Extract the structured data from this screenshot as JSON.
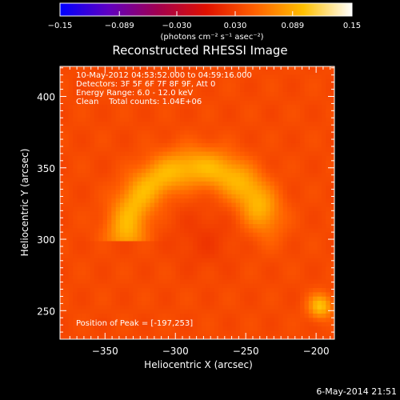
{
  "chart_data": {
    "type": "heatmap",
    "title": "Reconstructed RHESSI Image",
    "xlabel": "Heliocentric X (arcsec)",
    "ylabel": "Heliocentric Y (arcsec)",
    "xlim": [
      -382,
      -187
    ],
    "ylim": [
      230,
      421
    ],
    "xticks": [
      -350,
      -300,
      -250,
      -200
    ],
    "xtick_labels": [
      "−350",
      "−300",
      "−250",
      "−200"
    ],
    "yticks": [
      250,
      300,
      350,
      400
    ],
    "ytick_labels": [
      "250",
      "300",
      "350",
      "400"
    ],
    "colorbar": {
      "range": [
        -0.15,
        0.15
      ],
      "ticks": [
        -0.15,
        -0.089,
        -0.03,
        0.03,
        0.089,
        0.15
      ],
      "tick_labels": [
        "−0.15",
        "−0.089",
        "−0.030",
        "0.030",
        "0.089",
        "0.15"
      ],
      "unit_label": "(photons cm⁻² s⁻¹ asec⁻²)",
      "colors": [
        "#0000ff",
        "#6000c0",
        "#a00050",
        "#e01000",
        "#ff6000",
        "#ffc000",
        "#ffffff"
      ]
    },
    "annotations": [
      "10-May-2012 04:53:52.000 to 04:59:16.000",
      "Detectors: 3F 5F 6F 7F 8F 9F, Att 0",
      "Energy Range: 6.0 - 12.0 keV",
      "Clean    Total counts: 1.04E+06"
    ],
    "peak_label": "Position of Peak = [-197,253]",
    "peak": [
      -197,
      253
    ],
    "sources": [
      {
        "kind": "loop",
        "center": [
          -285,
          300
        ],
        "radius": 50,
        "arc_from_deg": 30,
        "arc_to_deg": 170,
        "width": 10,
        "amplitude": 0.06
      },
      {
        "kind": "blob",
        "center": [
          -197,
          253
        ],
        "sigma": 6,
        "amplitude": 0.065
      },
      {
        "kind": "background",
        "level": 0.036
      },
      {
        "kind": "dip",
        "center": [
          -280,
          300
        ],
        "sigma": 15,
        "amplitude": -0.01
      }
    ]
  },
  "footer": {
    "date": "6-May-2014 21:51"
  }
}
